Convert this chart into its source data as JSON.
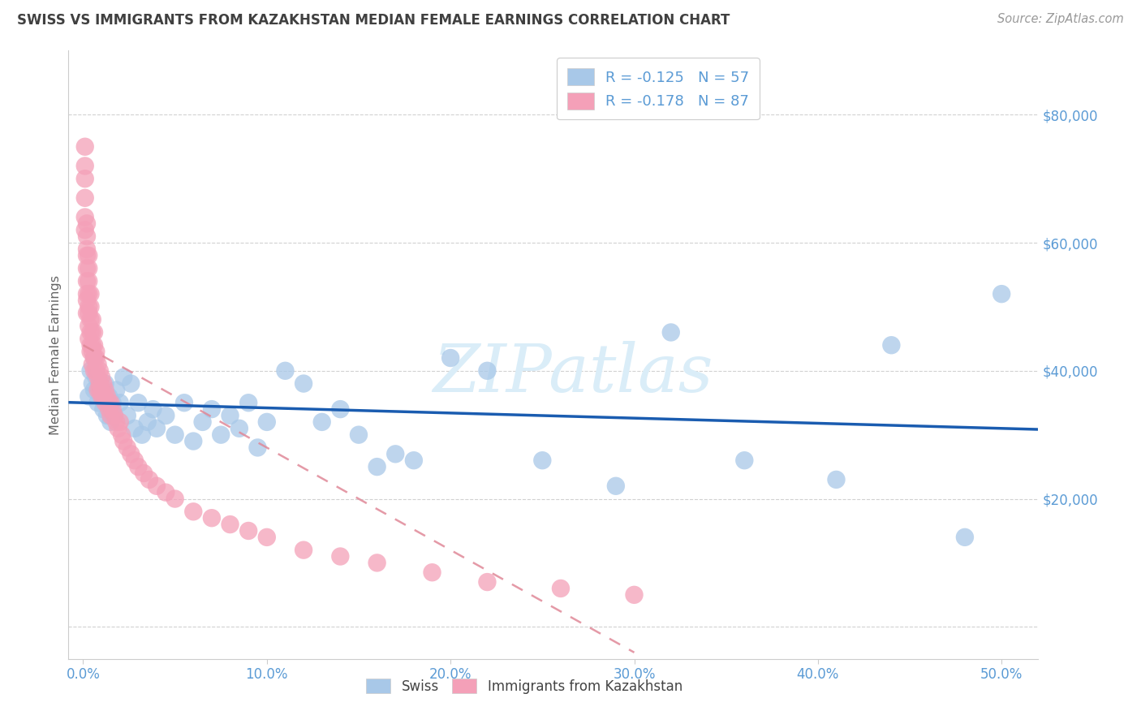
{
  "title": "SWISS VS IMMIGRANTS FROM KAZAKHSTAN MEDIAN FEMALE EARNINGS CORRELATION CHART",
  "source": "Source: ZipAtlas.com",
  "ylabel": "Median Female Earnings",
  "xlim": [
    -0.008,
    0.52
  ],
  "ylim": [
    -5000,
    90000
  ],
  "xtick_positions": [
    0.0,
    0.1,
    0.2,
    0.3,
    0.4,
    0.5
  ],
  "xtick_labels": [
    "0.0%",
    "10.0%",
    "20.0%",
    "30.0%",
    "40.0%",
    "50.0%"
  ],
  "ytick_positions": [
    0,
    20000,
    40000,
    60000,
    80000
  ],
  "ytick_labels": [
    "",
    "$20,000",
    "$40,000",
    "$60,000",
    "$80,000"
  ],
  "swiss_color": "#a8c8e8",
  "kaz_color": "#f4a0b8",
  "swiss_line_color": "#1a5cb0",
  "kaz_line_color": "#e08898",
  "watermark": "ZIPatlas",
  "watermark_color": "#daedf8",
  "grid_color": "#cccccc",
  "title_color": "#404040",
  "axis_color": "#5b9bd5",
  "ylabel_color": "#666666",
  "source_color": "#999999",
  "legend_R_swiss": "R = -0.125",
  "legend_N_swiss": "N = 57",
  "legend_R_kaz": "R = -0.178",
  "legend_N_kaz": "N = 87",
  "bottom_legend_swiss": "Swiss",
  "bottom_legend_kaz": "Immigrants from Kazakhstan",
  "swiss_x": [
    0.003,
    0.004,
    0.005,
    0.006,
    0.006,
    0.007,
    0.008,
    0.009,
    0.01,
    0.011,
    0.012,
    0.013,
    0.014,
    0.015,
    0.016,
    0.017,
    0.018,
    0.02,
    0.022,
    0.024,
    0.026,
    0.028,
    0.03,
    0.032,
    0.035,
    0.038,
    0.04,
    0.045,
    0.05,
    0.055,
    0.06,
    0.065,
    0.07,
    0.075,
    0.08,
    0.085,
    0.09,
    0.095,
    0.1,
    0.11,
    0.12,
    0.13,
    0.14,
    0.15,
    0.16,
    0.17,
    0.18,
    0.2,
    0.22,
    0.25,
    0.29,
    0.32,
    0.36,
    0.41,
    0.44,
    0.48,
    0.5
  ],
  "swiss_y": [
    36000,
    40000,
    38000,
    42000,
    37000,
    39000,
    35000,
    38000,
    36000,
    34000,
    38000,
    33000,
    36000,
    32000,
    35000,
    33000,
    37000,
    35000,
    39000,
    33000,
    38000,
    31000,
    35000,
    30000,
    32000,
    34000,
    31000,
    33000,
    30000,
    35000,
    29000,
    32000,
    34000,
    30000,
    33000,
    31000,
    35000,
    28000,
    32000,
    40000,
    38000,
    32000,
    34000,
    30000,
    25000,
    27000,
    26000,
    42000,
    40000,
    26000,
    22000,
    46000,
    26000,
    23000,
    44000,
    14000,
    52000
  ],
  "kaz_x": [
    0.001,
    0.001,
    0.001,
    0.001,
    0.001,
    0.001,
    0.002,
    0.002,
    0.002,
    0.002,
    0.002,
    0.002,
    0.002,
    0.002,
    0.002,
    0.003,
    0.003,
    0.003,
    0.003,
    0.003,
    0.003,
    0.003,
    0.003,
    0.004,
    0.004,
    0.004,
    0.004,
    0.004,
    0.004,
    0.005,
    0.005,
    0.005,
    0.005,
    0.005,
    0.006,
    0.006,
    0.006,
    0.006,
    0.007,
    0.007,
    0.007,
    0.008,
    0.008,
    0.008,
    0.009,
    0.009,
    0.009,
    0.01,
    0.01,
    0.01,
    0.011,
    0.011,
    0.012,
    0.012,
    0.013,
    0.014,
    0.014,
    0.015,
    0.015,
    0.016,
    0.017,
    0.018,
    0.019,
    0.02,
    0.021,
    0.022,
    0.024,
    0.026,
    0.028,
    0.03,
    0.033,
    0.036,
    0.04,
    0.045,
    0.05,
    0.06,
    0.07,
    0.08,
    0.09,
    0.1,
    0.12,
    0.14,
    0.16,
    0.19,
    0.22,
    0.26,
    0.3
  ],
  "kaz_y": [
    75000,
    72000,
    70000,
    67000,
    64000,
    62000,
    63000,
    61000,
    59000,
    58000,
    56000,
    54000,
    52000,
    51000,
    49000,
    58000,
    56000,
    54000,
    52000,
    50000,
    49000,
    47000,
    45000,
    52000,
    50000,
    48000,
    46000,
    44000,
    43000,
    48000,
    46000,
    44000,
    43000,
    41000,
    46000,
    44000,
    42000,
    40000,
    43000,
    42000,
    40000,
    41000,
    39000,
    37000,
    40000,
    38000,
    37000,
    39000,
    37000,
    36000,
    38000,
    36000,
    37000,
    35000,
    36000,
    35000,
    34000,
    35000,
    33000,
    34000,
    33000,
    32000,
    31000,
    32000,
    30000,
    29000,
    28000,
    27000,
    26000,
    25000,
    24000,
    23000,
    22000,
    21000,
    20000,
    18000,
    17000,
    16000,
    15000,
    14000,
    12000,
    11000,
    10000,
    8500,
    7000,
    6000,
    5000
  ]
}
